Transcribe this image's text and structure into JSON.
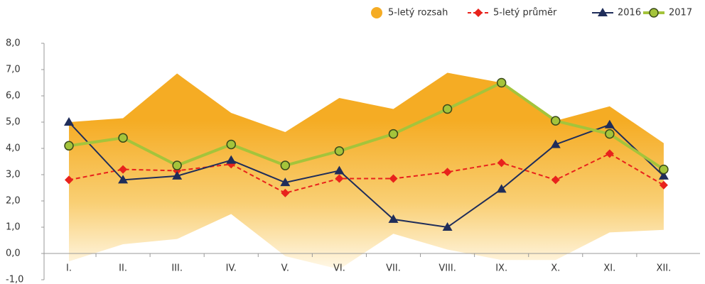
{
  "chart_data": {
    "type": "line",
    "categories": [
      "I.",
      "II.",
      "III.",
      "IV.",
      "V.",
      "VI.",
      "VII.",
      "VIII.",
      "IX.",
      "X.",
      "XI.",
      "XII."
    ],
    "ylim": [
      -1,
      8
    ],
    "yticks": [
      {
        "value": 8,
        "label": "8,0"
      },
      {
        "value": 7,
        "label": "7,0"
      },
      {
        "value": 6,
        "label": "6,0"
      },
      {
        "value": 5,
        "label": "5,0"
      },
      {
        "value": 4,
        "label": "4,0"
      },
      {
        "value": 3,
        "label": "3,0"
      },
      {
        "value": 2,
        "label": "2,0"
      },
      {
        "value": 1,
        "label": "1,0"
      },
      {
        "value": 0,
        "label": "0,0"
      },
      {
        "value": -1,
        "label": "-1,0"
      }
    ],
    "grid": false,
    "legend": "top-right",
    "band": {
      "name": "5-letý rozsah",
      "color": "#f5ac24",
      "upper": [
        5.0,
        5.15,
        6.85,
        5.35,
        4.62,
        5.92,
        5.5,
        6.88,
        6.5,
        5.05,
        5.6,
        4.2
      ],
      "lower": [
        -0.3,
        0.35,
        0.55,
        1.5,
        -0.1,
        -0.6,
        0.75,
        0.15,
        -0.25,
        -0.25,
        0.8,
        0.9
      ]
    },
    "series": [
      {
        "name": "5-letý průměr",
        "color": "#e8221c",
        "marker": "diamond",
        "dash": true,
        "values": [
          2.8,
          3.2,
          3.15,
          3.4,
          2.3,
          2.85,
          2.85,
          3.1,
          3.45,
          2.8,
          3.8,
          2.6
        ]
      },
      {
        "name": "2016",
        "color": "#1f2d5a",
        "marker": "triangle",
        "dash": false,
        "values": [
          5.0,
          2.8,
          2.95,
          3.55,
          2.7,
          3.15,
          1.3,
          1.0,
          2.45,
          4.15,
          4.9,
          2.95
        ]
      },
      {
        "name": "2017",
        "color": "#a4c43b",
        "marker": "circle",
        "dash": false,
        "values": [
          4.1,
          4.4,
          3.35,
          4.15,
          3.35,
          3.9,
          4.55,
          5.5,
          6.5,
          5.05,
          4.55,
          3.2
        ]
      }
    ]
  }
}
